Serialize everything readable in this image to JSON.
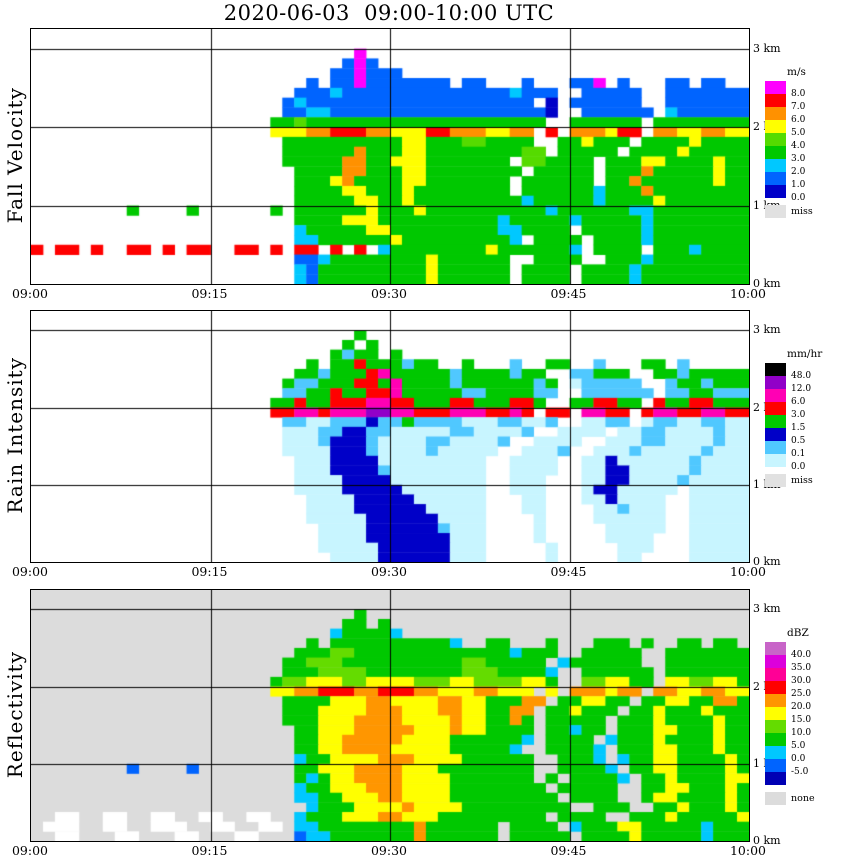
{
  "title": "2020-06-03  09:00-10:00 UTC",
  "axes": {
    "x_ticks": [
      "09:00",
      "09:15",
      "09:30",
      "09:45",
      "10:00"
    ],
    "y_ticks_right": [
      "3 km",
      "2 km",
      "1 km",
      "0 km"
    ]
  },
  "chart_data": [
    {
      "type": "heatmap",
      "label": "Fall Velocity",
      "unit": "m/s",
      "x_range": [
        "09:00",
        "10:00"
      ],
      "y_range_km": [
        0,
        3.25
      ],
      "cols": 60,
      "rows": 26,
      "background": "#FFFFFF",
      "palette": {
        "0": "#0000C8",
        "1": "#0064FF",
        "2": "#00C8FF",
        "3": "#00C800",
        "4": "#55DB00",
        "5": "#FFFF00",
        "6": "#FF9100",
        "7": "#FF0000",
        "8": "#FF00FF"
      },
      "legend": {
        "unit": "m/s",
        "entries": [
          {
            "color": "#FF00FF",
            "label": "8.0"
          },
          {
            "color": "#FF0000",
            "label": "7.0"
          },
          {
            "color": "#FF9100",
            "label": "6.0"
          },
          {
            "color": "#FFFF00",
            "label": "5.0"
          },
          {
            "color": "#55DB00",
            "label": "4.0"
          },
          {
            "color": "#00C800",
            "label": "3.0"
          },
          {
            "color": "#00C8FF",
            "label": "2.0"
          },
          {
            "color": "#0064FF",
            "label": "1.0"
          },
          {
            "color": "#0000C8",
            "label": "0.0"
          }
        ],
        "missing": {
          "label": "miss",
          "color": "#E1E1E1"
        }
      },
      "grid_rle": [
        "60.",
        "60.",
        "27. 18 32.",
        "26. 11 18 11 31.",
        "25. 21 18 31 29.",
        "23. 11 1. 21 18 71 1. 21 3. 11 3. 21 18 1. 11 3. 21 1. 21 2.",
        "22. 31 12 141 12 31 2. 51 2. 71",
        "21. 11 12 191 1. 10 1. 61 2. 71",
        "21. 21 22 181 10 2. 61 1. 12 61",
        "20. 23 14 203 2. 63 1. 83",
        "20. 35 26 37 26 35 27 36 25 26 1. 17 1. 36 15 27 1. 26 25 26 25",
        "21. 103 25 33 24 43 2. 23 15 33 1. 43 15 43",
        "21. 63 16 33 25 83 24 1. 53 1. 43 15 53",
        "21. 53 26 23 35 73 1. 24 43 1. 33 25 43 15 23",
        "22. 43 26 33 25 83 1. 53 1. 33 16 53 15 23",
        "22. 33 15 16 43 25 73 1. 63 1. 23 16 63 15 23",
        "22. 43 25 33 15 83 1. 63 12 33 16 83",
        "22. 53 25 23 15 93 12 53 12 43 15 73",
        "8. 13 4. 13 6. 13 1. 63 15 33 15 103 12 63 22 83",
        "22. 43 35 103 12 53 12 53 12 83",
        "22. 12 53 25 93 22 43 1. 53 12 83",
        "22. 22 63 15 93 12 1. 43 1. 43 12 83",
        "17 1. 27 1. 17 2. 27 1. 17 1. 27 2. 27 1. 17 1. 27 1. 17 1. 17 1. 12 83 15 63 12 1. 43 1. 33 12 43",
        "22. 21 12 83 15 63 2. 43 2. 33 12 83",
        "22. 12 11 93 15 63 1. 43 1. 43 12 93",
        "22. 12 11 93 15 63 1. 43 1. 43 12 93"
      ]
    },
    {
      "type": "heatmap",
      "label": "Rain Intensity",
      "unit": "mm/hr",
      "x_range": [
        "09:00",
        "10:00"
      ],
      "y_range_km": [
        0,
        3.25
      ],
      "cols": 60,
      "rows": 26,
      "background": "#FFFFFF",
      "palette": {
        "0": "#C8F5FF",
        "1": "#50C8FF",
        "2": "#0000C8",
        "3": "#00C800",
        "4": "#FF0000",
        "5": "#FF00B4",
        "6": "#9100C8",
        "7": "#000000"
      },
      "legend": {
        "unit": "mm/hr",
        "entries": [
          {
            "color": "#000000",
            "label": "48.0"
          },
          {
            "color": "#9100C8",
            "label": "12.0"
          },
          {
            "color": "#FF00B4",
            "label": "6.0"
          },
          {
            "color": "#FF0000",
            "label": "3.0"
          },
          {
            "color": "#00C800",
            "label": "1.5"
          },
          {
            "color": "#0000C8",
            "label": "0.5"
          },
          {
            "color": "#50C8FF",
            "label": "0.1"
          },
          {
            "color": "#C8F5FF",
            "label": "0.0"
          }
        ],
        "missing": {
          "label": "miss",
          "color": "#E1E1E1"
        }
      },
      "grid_rle": [
        "60.",
        "60.",
        "27. 13 32.",
        "26. 13 1. 13 31.",
        "25. 13 11 23 1. 13 29.",
        "23. 13 1. 23 14 33 11 23 2. 13 3. 11 2. 23 2. 11 3. 23 1. 11 5.",
        "22. 23 11 33 14 15 53 11 43 11 23 2. 21 33 2. 23 11 53",
        "21. 13 21 33 24 13 15 43 11 63 11 13 1. 10 51 2. 11 23 11 33",
        "21. 21 23 14 23 24 15 53 21 43 21 2. 61 1. 21 23 31 23",
        "20. 23 14 23 34 25 24 33 24 33 24 13 2. 23 24 23 1. 14 23 24 33",
        "20. 24 25 14 35 26 25 34 35 24 15 14 1. 24 1. 25 24 1. 14 25 24 25 24",
        "21. 21 20 31 12 21 13 41 30 21 20 11 2. 20 21 1. 10 21 20 21 20",
        "21. 30 21 22 21 50 21 40 11 2. 40 1. 20 21 40 11 20",
        "21. 30 11 32 11 40 21 40 11 2. 40 2. 30 21 40 11 20",
        "21. 40 32 11 40 11 50 2. 30 11 2. 30 11 50 11 30",
        "22. 30 42 90 2. 40 2. 20 12 60 11 40",
        "22. 30 42 11 80 2. 40 2. 20 22 50 11 40",
        "22. 40 42 80 2. 30 3. 20 22 40 11 50",
        "22. 40 52 70 2. 30 3. 10 22 50 1. 50",
        "23. 40 52 60 3. 20 3. 20 12 40 2. 50",
        "23. 40 62 50 3. 20 4. 20 11 30 2. 50",
        "23. 50 62 40 4. 10 4. 60 2. 50",
        "24. 40 62 11 30 4. 10 5. 50 2. 50",
        "24. 40 72 30 4. 10 5. 40 3. 50",
        "24. 50 62 30 5. 10 5. 30 3. 50",
        "25. 40 62 30 5. 10 5. 20 4. 50"
      ]
    },
    {
      "type": "heatmap",
      "label": "Reflectivity",
      "unit": "dBZ",
      "x_range": [
        "09:00",
        "10:00"
      ],
      "y_range_km": [
        0,
        3.25
      ],
      "cols": 60,
      "rows": 26,
      "background": "#DCDCDC",
      "palette": {
        "0": "#0000B4",
        "1": "#0064FF",
        "2": "#00C8FF",
        "3": "#00C800",
        "4": "#64DC00",
        "5": "#FFFF00",
        "6": "#FF9600",
        "7": "#FF0000",
        "8": "#FF0096",
        "9": "#DC00DC",
        "a": "#C864C8",
        "w": "#FFFFFF"
      },
      "legend": {
        "unit": "dBZ",
        "entries": [
          {
            "color": "#C864C8",
            "label": "40.0"
          },
          {
            "color": "#DC00DC",
            "label": "35.0"
          },
          {
            "color": "#FF0096",
            "label": "30.0"
          },
          {
            "color": "#FF0000",
            "label": "25.0"
          },
          {
            "color": "#FF9600",
            "label": "20.0"
          },
          {
            "color": "#FFFF00",
            "label": "15.0"
          },
          {
            "color": "#64DC00",
            "label": "10.0"
          },
          {
            "color": "#00C800",
            "label": "5.0"
          },
          {
            "color": "#00C8FF",
            "label": "0.0"
          },
          {
            "color": "#0064FF",
            "label": "-5.0"
          },
          {
            "color": "#0000B4",
            "label": ""
          }
        ],
        "missing": {
          "label": "none",
          "color": "#DCDCDC"
        }
      },
      "grid_rle": [
        "60.",
        "60.",
        "27. 13 32.",
        "26. 23 1. 13 30.",
        "25. 12 43 12 29.",
        "23. 13 1. 103 12 2. 23 3. 13 3. 33 1. 13 2. 23 1. 23 1.",
        "22. 33 24 133 12 33 2. 53 2. 73",
        "21. 23 34 103 24 53 1. 12 63 2. 73",
        "21. 33 44 83 34 43 12 2. 63 1. 73",
        "20. 13 24 35 24 45 34 25 44 25 13 2. 24 25 23 1. 25 24 25 13",
        "20. 25 26 37 26 37 26 35 26 35 1. 15 1. 36 15 26 1. 26 25 26 25",
        "21. 43 35 26 45 26 25 33 26 1. 23 25 23 1. 23 25 23 26 13",
        "21. 33 45 36 35 26 25 23 26 1. 23 15 33 1. 23 15 33 15 33",
        "21. 33 35 46 45 16 25 23 16 13 1. 53 1. 33 15 43 15 23",
        "22. 23 35 56 35 16 25 43 1. 23 12 23 1. 33 25 33 15 23",
        "22. 23 25 56 45 63 12 1. 43 1. 12 33 15 43 15 23",
        "22. 23 25 46 55 53 12 2. 43 12 1. 33 25 33 15 23",
        "22. 12 23 45 36 45 63 2. 33 12 1. 12 23 25 43 15 13",
        "8. 11 4. 11 8. 23 35 46 35 83 2. 43 12 1. 23 25 43 15 13",
        "22. 13 12 13 25 46 45 73 1. 13 1. 43 12 1. 23 15 43 25",
        "22. 12 23 35 36 45 83 1. 53 2. 23 25 33 15 13",
        "22. 22 23 35 26 45 93 1. 43 2. 13 25 43 15 13",
        "23. 12 33 45 16 45 93 2. 33 2. 23 15 33 15 13",
        "2. 2w 2. 2w 2. 2w 2. 2w 2. 2w 2. 12 33 35 26 35 93 1. 43 2. 33 15 53 15",
        "1. 3w 2. 2w 2. 3w 2. 2w 2. 2w 1. 22 83 16 63 1. 43 1. 12 33 25 53 12 33",
        "2. 2w 3. 2w 3. 2w 3. 2w 3. 11 22 73 16 63 1. 53 1. 43 15 53 12 33"
      ]
    }
  ]
}
